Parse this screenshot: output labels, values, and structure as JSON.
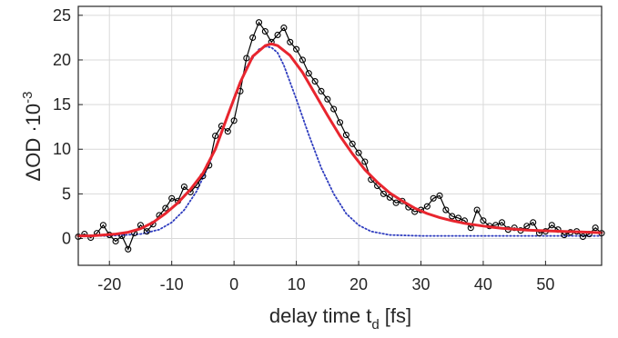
{
  "chart_data": {
    "type": "line",
    "title": "",
    "xlabel": "delay time t",
    "xlabel_subscript": "d",
    "xlabel_unit": " [fs]",
    "ylabel": "ΔOD ·10",
    "ylabel_exponent": "-3",
    "xlim": [
      -25,
      59
    ],
    "ylim": [
      -3,
      26
    ],
    "xticks": [
      -20,
      -10,
      0,
      10,
      20,
      30,
      40,
      50
    ],
    "xtick_labels": [
      "-20",
      "-10",
      "0",
      "10",
      "20",
      "30",
      "40",
      "50"
    ],
    "yticks": [
      0,
      5,
      10,
      15,
      20,
      25
    ],
    "ytick_labels": [
      "0",
      "5",
      "10",
      "15",
      "20",
      "25"
    ],
    "grid": true,
    "legend": "none",
    "series": [
      {
        "kind": "data-markers",
        "color": "#000000",
        "marker": "open-circle",
        "x": [
          -25,
          -24,
          -23,
          -22,
          -21,
          -20,
          -19,
          -18,
          -17,
          -16,
          -15,
          -14,
          -13,
          -12,
          -11,
          -10,
          -9,
          -8,
          -7,
          -6,
          -5,
          -4,
          -3,
          -2,
          -1,
          0,
          1,
          2,
          3,
          4,
          5,
          6,
          7,
          8,
          9,
          10,
          11,
          12,
          13,
          14,
          15,
          16,
          17,
          18,
          19,
          20,
          21,
          22,
          23,
          24,
          25,
          26,
          27,
          28,
          29,
          30,
          31,
          32,
          33,
          34,
          35,
          36,
          37,
          38,
          39,
          40,
          41,
          42,
          43,
          44,
          45,
          46,
          47,
          48,
          49,
          50,
          51,
          52,
          53,
          54,
          55,
          56,
          57,
          58,
          59
        ],
        "y": [
          0.2,
          0.5,
          0.1,
          0.6,
          1.5,
          0.4,
          -0.3,
          0.3,
          -1.2,
          0.6,
          1.5,
          0.8,
          1.6,
          2.6,
          3.4,
          4.5,
          4.2,
          5.8,
          5.2,
          6.0,
          7.0,
          8.2,
          11.5,
          12.6,
          12.0,
          13.2,
          16.5,
          20.2,
          22.5,
          24.2,
          23.2,
          22.0,
          22.8,
          23.6,
          22.0,
          21.2,
          20.0,
          18.5,
          17.6,
          16.5,
          15.6,
          14.5,
          13.0,
          11.6,
          10.6,
          9.6,
          8.6,
          6.6,
          5.9,
          5.0,
          4.6,
          4.0,
          4.2,
          3.5,
          3.0,
          3.2,
          3.6,
          4.5,
          4.8,
          3.2,
          2.5,
          2.3,
          2.0,
          1.2,
          3.2,
          2.0,
          1.4,
          1.5,
          1.8,
          1.0,
          1.2,
          0.9,
          1.4,
          1.8,
          0.6,
          0.8,
          1.5,
          1.0,
          0.4,
          0.7,
          0.8,
          0.2,
          0.5,
          1.2,
          0.6
        ]
      },
      {
        "kind": "fit",
        "color": "#e8252e",
        "x": [
          -25,
          -23,
          -21,
          -19,
          -17,
          -15,
          -13,
          -11,
          -9,
          -7,
          -5,
          -3,
          -1,
          1,
          3,
          5,
          6,
          7,
          9,
          11,
          13,
          15,
          17,
          19,
          21,
          23,
          25,
          27,
          29,
          31,
          33,
          35,
          37,
          39,
          41,
          43,
          45,
          47,
          49,
          51,
          53,
          55,
          57,
          59
        ],
        "y": [
          0.3,
          0.3,
          0.4,
          0.5,
          0.7,
          1.1,
          1.8,
          2.8,
          4.0,
          5.5,
          7.3,
          10.0,
          13.8,
          17.5,
          20.4,
          21.6,
          21.8,
          21.6,
          20.5,
          18.6,
          16.2,
          13.8,
          11.5,
          9.5,
          7.7,
          6.3,
          5.1,
          4.2,
          3.4,
          2.8,
          2.35,
          2.0,
          1.7,
          1.5,
          1.3,
          1.15,
          1.05,
          0.95,
          0.9,
          0.85,
          0.8,
          0.75,
          0.7,
          0.65
        ]
      },
      {
        "kind": "reference",
        "color": "#2f3dbf",
        "style": "dotted",
        "x": [
          -25,
          -20,
          -15,
          -12,
          -10,
          -8,
          -6,
          -4,
          -2,
          0,
          2,
          4,
          5,
          6,
          7,
          8,
          10,
          12,
          14,
          16,
          18,
          20,
          22,
          25,
          30,
          40,
          59
        ],
        "y": [
          0.3,
          0.3,
          0.5,
          1.0,
          1.8,
          3.2,
          5.3,
          8.3,
          12.0,
          15.8,
          19.2,
          21.2,
          21.5,
          21.4,
          20.8,
          19.4,
          15.6,
          11.6,
          7.9,
          5.0,
          2.8,
          1.5,
          0.8,
          0.4,
          0.3,
          0.3,
          0.3
        ]
      }
    ]
  }
}
